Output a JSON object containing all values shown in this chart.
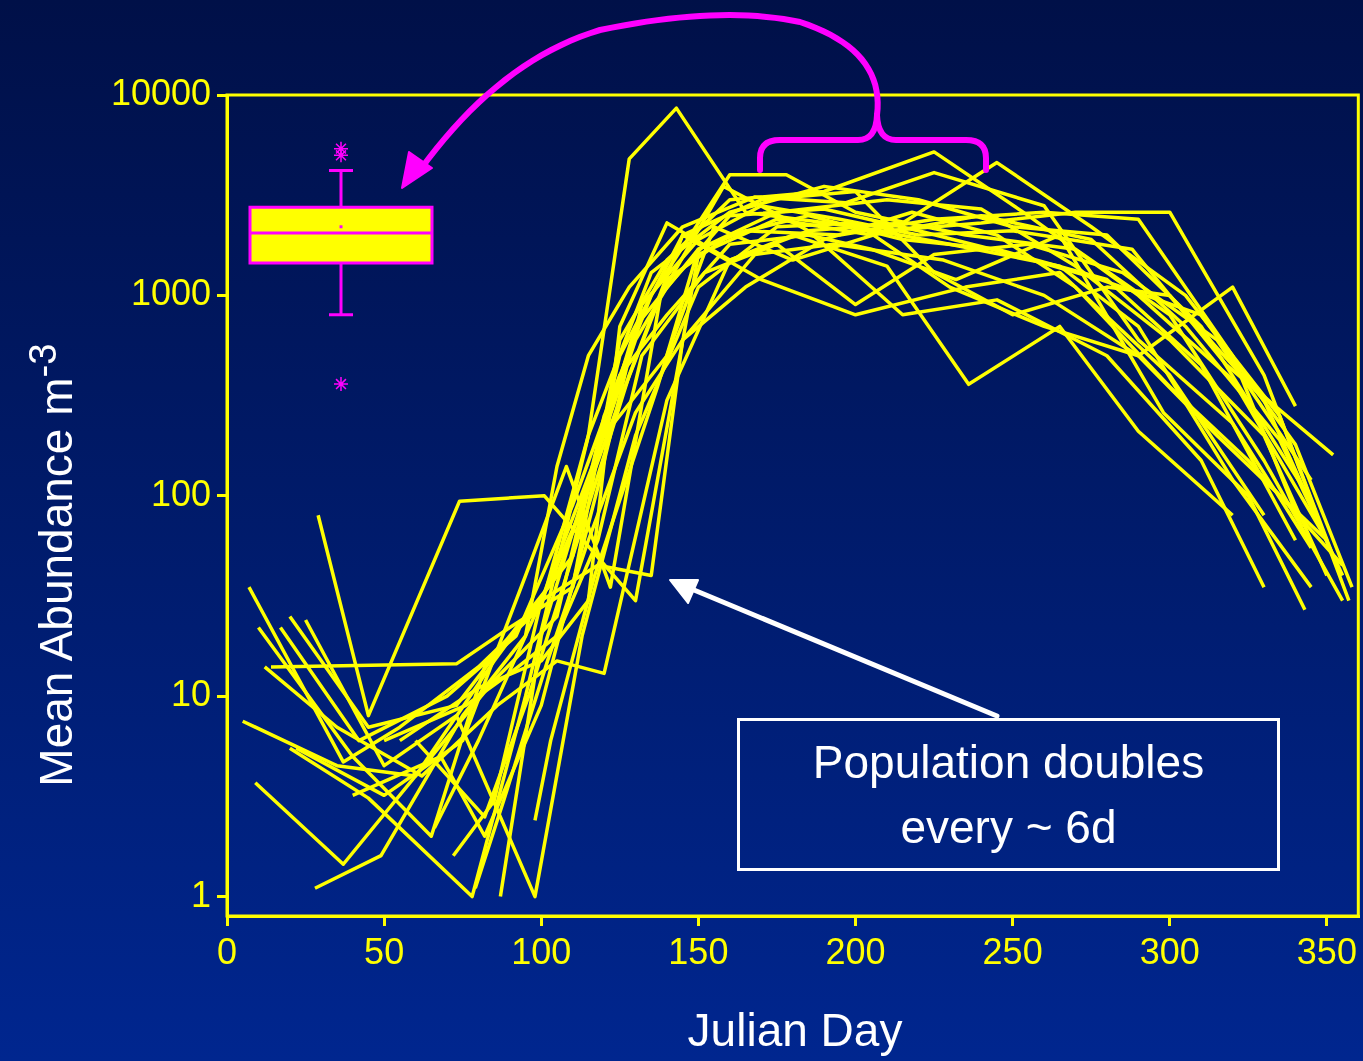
{
  "chart_data": [
    {
      "type": "line",
      "xlabel": "Julian Day",
      "ylabel": "Mean Abundance m$^{-3}$",
      "log": "y",
      "grid": false,
      "legend": false,
      "xlim": [
        0,
        360
      ],
      "xticks": [
        0,
        50,
        100,
        150,
        200,
        250,
        300,
        350
      ],
      "ylim": [
        0.8,
        10000
      ],
      "yticks": [
        1,
        10,
        100,
        1000,
        10000
      ],
      "annotations": [
        "Population doubles every ~ 6d"
      ],
      "series": [
        {
          "color": "#ffff00",
          "x": [
            7,
            37,
            55,
            80,
            100,
            115,
            128,
            143,
            165,
            200,
            230,
            265,
            290,
            320,
            345
          ],
          "values": [
            35,
            4.7,
            7,
            14,
            28,
            200,
            4800,
            8600,
            2600,
            2200,
            1800,
            1400,
            700,
            120,
            35
          ]
        },
        {
          "color": "#ffff00",
          "x": [
            29,
            45,
            74,
            101,
            130,
            150,
            175,
            205,
            240,
            275,
            305,
            335,
            355
          ],
          "values": [
            80,
            8,
            94,
            100,
            30,
            1600,
            2400,
            2000,
            2500,
            1900,
            700,
            190,
            40
          ]
        },
        {
          "color": "#ffff00",
          "x": [
            14,
            73,
            90,
            110,
            125,
            140,
            160,
            190,
            225,
            255,
            290,
            320,
            350
          ],
          "values": [
            14,
            14.5,
            22,
            35,
            600,
            1500,
            3000,
            3300,
            5200,
            2500,
            1000,
            380,
            60
          ]
        },
        {
          "color": "#ffff00",
          "x": [
            5,
            35,
            60,
            85,
            105,
            120,
            135,
            160,
            178,
            200,
            235,
            270,
            300,
            330,
            355
          ],
          "values": [
            7.5,
            4.5,
            4,
            12,
            25,
            250,
            1000,
            4000,
            4000,
            2600,
            2000,
            1700,
            800,
            150,
            30
          ]
        },
        {
          "color": "#ffff00",
          "x": [
            9,
            37,
            60,
            85,
            105,
            125,
            140,
            160,
            185,
            215,
            245,
            280,
            310,
            340
          ],
          "values": [
            3.7,
            1.45,
            4,
            15,
            40,
            300,
            1200,
            2000,
            2500,
            1900,
            1700,
            1200,
            450,
            60
          ]
        },
        {
          "color": "#ffff00",
          "x": [
            28,
            49,
            75,
            95,
            112,
            130,
            150,
            175,
            210,
            240,
            270,
            300,
            330,
            350
          ],
          "values": [
            1.1,
            1.6,
            8,
            20,
            80,
            700,
            1700,
            2600,
            3000,
            2700,
            1400,
            600,
            200,
            40
          ]
        },
        {
          "color": "#ffff00",
          "x": [
            20,
            45,
            78,
            95,
            115,
            135,
            160,
            190,
            220,
            250,
            280,
            310,
            345
          ],
          "values": [
            5.5,
            3.1,
            1,
            10,
            200,
            1300,
            2600,
            3500,
            3000,
            2200,
            2000,
            700,
            95
          ]
        },
        {
          "color": "#ffff00",
          "x": [
            25,
            50,
            73,
            98,
            113,
            130,
            150,
            175,
            200,
            230,
            260,
            290,
            320,
            340
          ],
          "values": [
            24,
            4.5,
            8,
            1,
            20,
            200,
            1100,
            2200,
            2300,
            1100,
            700,
            500,
            1100,
            280
          ]
        },
        {
          "color": "#ffff00",
          "x": [
            17,
            42,
            70,
            92,
            110,
            125,
            140,
            160,
            185,
            205,
            232,
            265,
            298,
            325,
            343
          ],
          "values": [
            22,
            6,
            10,
            20,
            90,
            400,
            800,
            1800,
            2000,
            1700,
            1200,
            2000,
            260,
            100,
            27
          ]
        },
        {
          "color": "#ffff00",
          "x": [
            22,
            50,
            75,
            95,
            108,
            122,
            138,
            158,
            185,
            215,
            245,
            280,
            310,
            330
          ],
          "values": [
            5.5,
            3.2,
            6,
            40,
            140,
            35,
            1000,
            3500,
            2100,
            800,
            950,
            500,
            150,
            35
          ]
        },
        {
          "color": "#ffff00",
          "x": [
            20,
            45,
            73,
            90,
            110,
            125,
            145,
            170,
            200,
            225,
            250,
            280,
            300,
            330,
            350
          ],
          "values": [
            25,
            7,
            9,
            20,
            50,
            500,
            2000,
            3000,
            3300,
            1300,
            800,
            1100,
            1000,
            300,
            60
          ]
        },
        {
          "color": "#ffff00",
          "x": [
            12,
            35,
            62,
            86,
            105,
            120,
            140,
            160,
            180,
            210,
            236,
            265,
            290,
            320
          ],
          "values": [
            14,
            7,
            4,
            9,
            15,
            13,
            300,
            1500,
            2000,
            1400,
            360,
            700,
            210,
            80
          ]
        },
        {
          "color": "#ffff00",
          "x": [
            10,
            40,
            65,
            82,
            100,
            118,
            135,
            145,
            168,
            193,
            228,
            260,
            290,
            315,
            350
          ],
          "values": [
            22,
            5,
            2,
            14,
            30,
            45,
            40,
            600,
            1600,
            1800,
            1500,
            1000,
            500,
            200,
            60
          ]
        },
        {
          "color": "#ffff00",
          "x": [
            50,
            76,
            90,
            105,
            118,
            132,
            152,
            175,
            200,
            225,
            255,
            285,
            315,
            345
          ],
          "values": [
            6,
            9,
            13,
            20,
            60,
            500,
            1300,
            1800,
            900,
            1600,
            1800,
            1300,
            600,
            120
          ]
        },
        {
          "color": "#ffff00",
          "x": [
            40,
            68,
            82,
            100,
            118,
            132,
            150,
            170,
            195,
            220,
            250,
            288,
            318,
            352
          ],
          "values": [
            3.2,
            5,
            2,
            9,
            110,
            900,
            1900,
            2800,
            2400,
            2000,
            2100,
            1700,
            450,
            160
          ]
        },
        {
          "color": "#ffff00",
          "x": [
            79,
            88,
            102,
            115,
            130,
            145,
            165,
            190,
            218,
            245,
            270,
            300,
            325,
            355
          ],
          "values": [
            1.1,
            3,
            15,
            60,
            260,
            600,
            1100,
            1900,
            2600,
            2000,
            1100,
            350,
            150,
            45
          ]
        },
        {
          "color": "#ffff00",
          "x": [
            98,
            103,
            117,
            137,
            150,
            165,
            195,
            225,
            260,
            290,
            320,
            342
          ],
          "values": [
            2.4,
            6,
            40,
            350,
            1700,
            2100,
            2000,
            2400,
            2600,
            2400,
            500,
            70
          ]
        },
        {
          "color": "#ffff00",
          "x": [
            66,
            80,
            95,
            105,
            115,
            128,
            145,
            168,
            197,
            225,
            260,
            290,
            320,
            345
          ],
          "values": [
            2.2,
            6,
            20,
            140,
            500,
            1100,
            2200,
            3100,
            2900,
            4100,
            2800,
            600,
            230,
            55
          ]
        },
        {
          "color": "#ffff00",
          "x": [
            72,
            85,
            100,
            120,
            140,
            155,
            180,
            210,
            240,
            270,
            300,
            330,
            352
          ],
          "values": [
            1.6,
            3,
            30,
            200,
            500,
            2200,
            1500,
            2100,
            2300,
            2600,
            2600,
            400,
            50
          ]
        },
        {
          "color": "#ffff00",
          "x": [
            60,
            82,
            96,
            110,
            128,
            145,
            170,
            200,
            235,
            265,
            300,
            330
          ],
          "values": [
            6,
            2.5,
            10,
            50,
            400,
            2000,
            1200,
            800,
            1100,
            1300,
            400,
            80
          ]
        },
        {
          "color": "#ffff00",
          "x": [
            87,
            100,
            115,
            130,
            140,
            160,
            190,
            220,
            250,
            278,
            310,
            340,
            358
          ],
          "values": [
            1,
            20,
            120,
            600,
            1100,
            2500,
            2700,
            2100,
            1600,
            1200,
            800,
            180,
            35
          ]
        },
        {
          "color": "#ffff00",
          "x": [
            55,
            80,
            100,
            115,
            125,
            140,
            160,
            185,
            215,
            245,
            275,
            305,
            335,
            357
          ],
          "values": [
            6,
            11,
            15,
            30,
            700,
            2300,
            1500,
            2100,
            2300,
            4600,
            2200,
            1000,
            250,
            30
          ]
        }
      ]
    },
    {
      "type": "box",
      "categories": [
        null
      ],
      "color": "#ffff00",
      "log": "y",
      "ylim": [
        1,
        10000
      ],
      "yticks": [
        1,
        10,
        100,
        1000,
        10000
      ],
      "tick_labels": false,
      "boxes": [
        {
          "low": 800,
          "q1": 1450,
          "median": 2050,
          "q3": 2750,
          "high": 4200,
          "mean": 2200,
          "outliers": [
            361,
            5000,
            5400
          ]
        }
      ]
    }
  ]
}
